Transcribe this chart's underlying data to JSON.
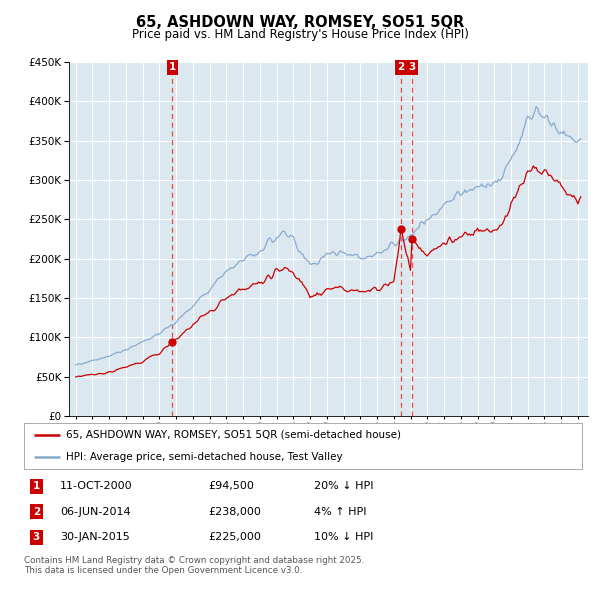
{
  "title": "65, ASHDOWN WAY, ROMSEY, SO51 5QR",
  "subtitle": "Price paid vs. HM Land Registry's House Price Index (HPI)",
  "ylim": [
    0,
    450000
  ],
  "yticks": [
    0,
    50000,
    100000,
    150000,
    200000,
    250000,
    300000,
    350000,
    400000,
    450000
  ],
  "red_line_color": "#cc0000",
  "blue_line_color": "#88aacc",
  "vline_color": "#ee4444",
  "annotation_box_color": "#cc0000",
  "grid_color": "#c8d8e8",
  "background_color": "#dce8f0",
  "plot_bg_color": "#dce8f0",
  "legend_label_red": "65, ASHDOWN WAY, ROMSEY, SO51 5QR (semi-detached house)",
  "legend_label_blue": "HPI: Average price, semi-detached house, Test Valley",
  "transactions": [
    {
      "num": 1,
      "date": "11-OCT-2000",
      "price": "£94,500",
      "hpi": "20% ↓ HPI",
      "year": 2000.78
    },
    {
      "num": 2,
      "date": "06-JUN-2014",
      "price": "£238,000",
      "hpi": "4% ↑ HPI",
      "year": 2014.43
    },
    {
      "num": 3,
      "date": "30-JAN-2015",
      "price": "£225,000",
      "hpi": "10% ↓ HPI",
      "year": 2015.08
    }
  ],
  "transaction_prices": [
    94500,
    238000,
    225000
  ],
  "footer": "Contains HM Land Registry data © Crown copyright and database right 2025.\nThis data is licensed under the Open Government Licence v3.0."
}
